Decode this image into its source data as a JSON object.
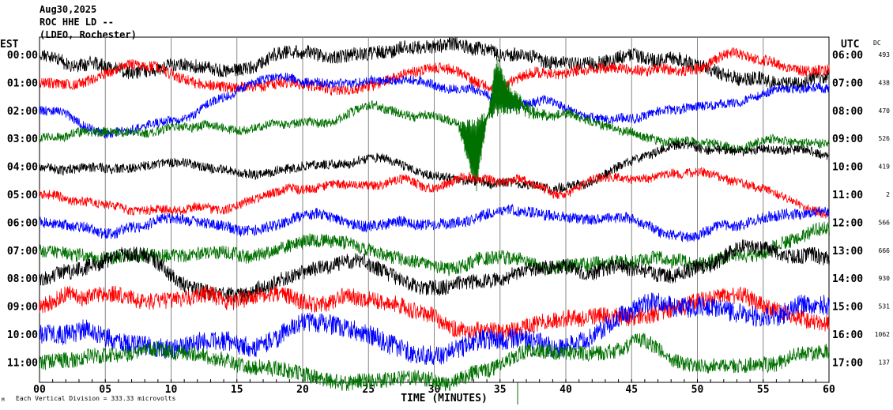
{
  "header": {
    "date": "Aug30,2025",
    "station": "ROC HHE LD --",
    "network": "(LDEO, Rochester)"
  },
  "chart_data": {
    "type": "line",
    "title": "ROC HHE LD -- Aug30,2025",
    "xlabel": "TIME (MINUTES)",
    "left_axis_title": "EST",
    "right_axis_title": "UTC",
    "dc_title": "DC",
    "xlim": [
      0,
      60
    ],
    "x_ticks": [
      "00",
      "05",
      "10",
      "15",
      "20",
      "25",
      "30",
      "35",
      "40",
      "45",
      "50",
      "55",
      "60"
    ],
    "grid": "vertical every 5 minutes",
    "colors": [
      "#000000",
      "#ff0000",
      "#0000ff",
      "#007000"
    ],
    "traces": [
      {
        "est": "00:00",
        "utc": "06:00",
        "dc": "493",
        "amplitude": 9
      },
      {
        "est": "01:00",
        "utc": "07:00",
        "dc": "438",
        "amplitude": 7
      },
      {
        "est": "02:00",
        "utc": "08:00",
        "dc": "470",
        "amplitude": 6
      },
      {
        "est": "03:00",
        "utc": "09:00",
        "dc": "526",
        "amplitude": 6
      },
      {
        "est": "04:00",
        "utc": "10:00",
        "dc": "419",
        "amplitude": 6
      },
      {
        "est": "05:00",
        "utc": "11:00",
        "dc": "2",
        "amplitude": 6
      },
      {
        "est": "06:00",
        "utc": "12:00",
        "dc": "566",
        "amplitude": 7
      },
      {
        "est": "07:00",
        "utc": "13:00",
        "dc": "666",
        "amplitude": 9
      },
      {
        "est": "08:00",
        "utc": "14:00",
        "dc": "930",
        "amplitude": 10
      },
      {
        "est": "09:00",
        "utc": "15:00",
        "dc": "531",
        "amplitude": 11
      },
      {
        "est": "10:00",
        "utc": "16:00",
        "dc": "1062",
        "amplitude": 13
      },
      {
        "est": "11:00",
        "utc": "17:00",
        "dc": "137",
        "amplitude": 10
      }
    ],
    "event": {
      "trace_index": 3,
      "start_minute": 31.8,
      "peak_minute": 34.7
    }
  },
  "footer": {
    "scale_note": "Each Vertical Division =  333.33 microvolts",
    "corner_mark": "M"
  }
}
